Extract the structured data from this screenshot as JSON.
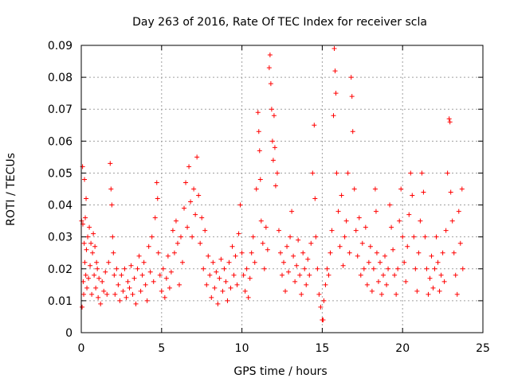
{
  "chart_data": {
    "type": "scatter",
    "title": "Day 263 of 2016, Rate Of TEC Index for receiver scla",
    "xlabel": "GPS time / hours",
    "ylabel": "ROTI / TECUs",
    "xlim": [
      0,
      25
    ],
    "ylim": [
      0,
      0.09
    ],
    "x_ticks": [
      0,
      5,
      10,
      15,
      20,
      25
    ],
    "x_tick_labels": [
      "0",
      "5",
      "10",
      "15",
      "20",
      "25"
    ],
    "y_ticks": [
      0,
      0.01,
      0.02,
      0.03,
      0.04,
      0.05,
      0.06,
      0.07,
      0.08,
      0.09
    ],
    "y_tick_labels": [
      "0",
      "0.01",
      "0.02",
      "0.03",
      "0.04",
      "0.05",
      "0.06",
      "0.07",
      "0.08",
      "0.09"
    ],
    "grid": true,
    "marker": "+",
    "color": "#ff0000",
    "series": [
      {
        "name": "ROTI",
        "points": [
          [
            0.02,
            0.035
          ],
          [
            0.05,
            0.008
          ],
          [
            0.08,
            0.052
          ],
          [
            0.1,
            0.034
          ],
          [
            0.12,
            0.016
          ],
          [
            0.15,
            0.012
          ],
          [
            0.18,
            0.028
          ],
          [
            0.2,
            0.048
          ],
          [
            0.22,
            0.022
          ],
          [
            0.25,
            0.036
          ],
          [
            0.28,
            0.018
          ],
          [
            0.3,
            0.042
          ],
          [
            0.32,
            0.026
          ],
          [
            0.35,
            0.014
          ],
          [
            0.4,
            0.03
          ],
          [
            0.45,
            0.017
          ],
          [
            0.5,
            0.033
          ],
          [
            0.55,
            0.021
          ],
          [
            0.6,
            0.028
          ],
          [
            0.65,
            0.012
          ],
          [
            0.7,
            0.025
          ],
          [
            0.75,
            0.031
          ],
          [
            0.8,
            0.018
          ],
          [
            0.85,
            0.027
          ],
          [
            0.9,
            0.014
          ],
          [
            0.95,
            0.022
          ],
          [
            1.0,
            0.02
          ],
          [
            1.05,
            0.011
          ],
          [
            1.1,
            0.017
          ],
          [
            1.2,
            0.009
          ],
          [
            1.3,
            0.016
          ],
          [
            1.4,
            0.013
          ],
          [
            1.5,
            0.019
          ],
          [
            1.6,
            0.012
          ],
          [
            1.7,
            0.022
          ],
          [
            1.8,
            0.053
          ],
          [
            1.85,
            0.045
          ],
          [
            1.9,
            0.04
          ],
          [
            1.95,
            0.03
          ],
          [
            2.0,
            0.025
          ],
          [
            2.05,
            0.018
          ],
          [
            2.1,
            0.012
          ],
          [
            2.2,
            0.02
          ],
          [
            2.3,
            0.015
          ],
          [
            2.4,
            0.01
          ],
          [
            2.5,
            0.018
          ],
          [
            2.6,
            0.013
          ],
          [
            2.7,
            0.02
          ],
          [
            2.8,
            0.011
          ],
          [
            2.9,
            0.016
          ],
          [
            3.0,
            0.014
          ],
          [
            3.1,
            0.021
          ],
          [
            3.2,
            0.012
          ],
          [
            3.3,
            0.017
          ],
          [
            3.4,
            0.009
          ],
          [
            3.5,
            0.02
          ],
          [
            3.6,
            0.024
          ],
          [
            3.7,
            0.013
          ],
          [
            3.8,
            0.018
          ],
          [
            3.9,
            0.022
          ],
          [
            4.0,
            0.015
          ],
          [
            4.1,
            0.01
          ],
          [
            4.2,
            0.027
          ],
          [
            4.3,
            0.019
          ],
          [
            4.4,
            0.03
          ],
          [
            4.5,
            0.016
          ],
          [
            4.6,
            0.036
          ],
          [
            4.7,
            0.047
          ],
          [
            4.75,
            0.042
          ],
          [
            4.8,
            0.025
          ],
          [
            4.9,
            0.018
          ],
          [
            5.0,
            0.013
          ],
          [
            5.1,
            0.02
          ],
          [
            5.2,
            0.011
          ],
          [
            5.3,
            0.017
          ],
          [
            5.4,
            0.024
          ],
          [
            5.5,
            0.014
          ],
          [
            5.6,
            0.019
          ],
          [
            5.7,
            0.032
          ],
          [
            5.8,
            0.025
          ],
          [
            5.9,
            0.035
          ],
          [
            6.0,
            0.028
          ],
          [
            6.1,
            0.015
          ],
          [
            6.2,
            0.03
          ],
          [
            6.3,
            0.022
          ],
          [
            6.4,
            0.039
          ],
          [
            6.5,
            0.047
          ],
          [
            6.6,
            0.033
          ],
          [
            6.7,
            0.052
          ],
          [
            6.8,
            0.041
          ],
          [
            6.9,
            0.03
          ],
          [
            7.0,
            0.045
          ],
          [
            7.1,
            0.037
          ],
          [
            7.2,
            0.055
          ],
          [
            7.3,
            0.043
          ],
          [
            7.4,
            0.028
          ],
          [
            7.5,
            0.036
          ],
          [
            7.6,
            0.02
          ],
          [
            7.7,
            0.032
          ],
          [
            7.8,
            0.015
          ],
          [
            7.9,
            0.024
          ],
          [
            8.0,
            0.018
          ],
          [
            8.1,
            0.011
          ],
          [
            8.2,
            0.022
          ],
          [
            8.3,
            0.014
          ],
          [
            8.4,
            0.019
          ],
          [
            8.5,
            0.009
          ],
          [
            8.6,
            0.017
          ],
          [
            8.7,
            0.023
          ],
          [
            8.8,
            0.013
          ],
          [
            8.9,
            0.02
          ],
          [
            9.0,
            0.016
          ],
          [
            9.1,
            0.01
          ],
          [
            9.2,
            0.022
          ],
          [
            9.3,
            0.014
          ],
          [
            9.4,
            0.027
          ],
          [
            9.5,
            0.018
          ],
          [
            9.6,
            0.024
          ],
          [
            9.7,
            0.015
          ],
          [
            9.8,
            0.031
          ],
          [
            9.9,
            0.04
          ],
          [
            10.0,
            0.025
          ],
          [
            10.1,
            0.018
          ],
          [
            10.2,
            0.013
          ],
          [
            10.3,
            0.02
          ],
          [
            10.4,
            0.011
          ],
          [
            10.5,
            0.017
          ],
          [
            10.6,
            0.025
          ],
          [
            10.7,
            0.03
          ],
          [
            10.8,
            0.022
          ],
          [
            10.9,
            0.045
          ],
          [
            11.0,
            0.069
          ],
          [
            11.05,
            0.063
          ],
          [
            11.1,
            0.057
          ],
          [
            11.15,
            0.048
          ],
          [
            11.2,
            0.035
          ],
          [
            11.3,
            0.028
          ],
          [
            11.4,
            0.02
          ],
          [
            11.5,
            0.033
          ],
          [
            11.6,
            0.026
          ],
          [
            11.7,
            0.083
          ],
          [
            11.75,
            0.087
          ],
          [
            11.8,
            0.078
          ],
          [
            11.85,
            0.07
          ],
          [
            11.9,
            0.06
          ],
          [
            11.95,
            0.054
          ],
          [
            12.0,
            0.068
          ],
          [
            12.05,
            0.058
          ],
          [
            12.1,
            0.046
          ],
          [
            12.2,
            0.05
          ],
          [
            12.3,
            0.032
          ],
          [
            12.4,
            0.025
          ],
          [
            12.5,
            0.018
          ],
          [
            12.6,
            0.022
          ],
          [
            12.7,
            0.013
          ],
          [
            12.8,
            0.027
          ],
          [
            12.9,
            0.019
          ],
          [
            13.0,
            0.03
          ],
          [
            13.1,
            0.038
          ],
          [
            13.2,
            0.024
          ],
          [
            13.3,
            0.016
          ],
          [
            13.4,
            0.021
          ],
          [
            13.5,
            0.029
          ],
          [
            13.6,
            0.018
          ],
          [
            13.7,
            0.012
          ],
          [
            13.8,
            0.025
          ],
          [
            13.9,
            0.02
          ],
          [
            14.0,
            0.015
          ],
          [
            14.1,
            0.023
          ],
          [
            14.2,
            0.018
          ],
          [
            14.3,
            0.028
          ],
          [
            14.4,
            0.05
          ],
          [
            14.5,
            0.065
          ],
          [
            14.55,
            0.042
          ],
          [
            14.6,
            0.03
          ],
          [
            14.7,
            0.02
          ],
          [
            14.8,
            0.012
          ],
          [
            14.9,
            0.008
          ],
          [
            15.0,
            0.004
          ],
          [
            15.05,
            0.004
          ],
          [
            15.1,
            0.01
          ],
          [
            15.2,
            0.015
          ],
          [
            15.3,
            0.02
          ],
          [
            15.4,
            0.018
          ],
          [
            15.5,
            0.025
          ],
          [
            15.6,
            0.032
          ],
          [
            15.7,
            0.068
          ],
          [
            15.75,
            0.089
          ],
          [
            15.8,
            0.082
          ],
          [
            15.85,
            0.075
          ],
          [
            15.9,
            0.05
          ],
          [
            16.0,
            0.038
          ],
          [
            16.1,
            0.027
          ],
          [
            16.2,
            0.043
          ],
          [
            16.3,
            0.021
          ],
          [
            16.4,
            0.03
          ],
          [
            16.5,
            0.035
          ],
          [
            16.6,
            0.05
          ],
          [
            16.7,
            0.025
          ],
          [
            16.8,
            0.08
          ],
          [
            16.85,
            0.074
          ],
          [
            16.9,
            0.063
          ],
          [
            17.0,
            0.045
          ],
          [
            17.1,
            0.032
          ],
          [
            17.2,
            0.024
          ],
          [
            17.3,
            0.036
          ],
          [
            17.4,
            0.018
          ],
          [
            17.5,
            0.028
          ],
          [
            17.6,
            0.02
          ],
          [
            17.7,
            0.033
          ],
          [
            17.8,
            0.015
          ],
          [
            17.9,
            0.022
          ],
          [
            18.0,
            0.027
          ],
          [
            18.1,
            0.013
          ],
          [
            18.2,
            0.02
          ],
          [
            18.3,
            0.045
          ],
          [
            18.35,
            0.038
          ],
          [
            18.4,
            0.025
          ],
          [
            18.5,
            0.016
          ],
          [
            18.6,
            0.022
          ],
          [
            18.7,
            0.012
          ],
          [
            18.8,
            0.018
          ],
          [
            18.9,
            0.024
          ],
          [
            19.0,
            0.015
          ],
          [
            19.1,
            0.02
          ],
          [
            19.2,
            0.04
          ],
          [
            19.3,
            0.033
          ],
          [
            19.4,
            0.026
          ],
          [
            19.5,
            0.018
          ],
          [
            19.6,
            0.012
          ],
          [
            19.7,
            0.02
          ],
          [
            19.8,
            0.035
          ],
          [
            19.9,
            0.045
          ],
          [
            20.0,
            0.03
          ],
          [
            20.1,
            0.022
          ],
          [
            20.2,
            0.016
          ],
          [
            20.3,
            0.027
          ],
          [
            20.4,
            0.037
          ],
          [
            20.5,
            0.05
          ],
          [
            20.6,
            0.043
          ],
          [
            20.7,
            0.03
          ],
          [
            20.8,
            0.02
          ],
          [
            20.9,
            0.013
          ],
          [
            21.0,
            0.025
          ],
          [
            21.1,
            0.035
          ],
          [
            21.2,
            0.05
          ],
          [
            21.3,
            0.044
          ],
          [
            21.4,
            0.03
          ],
          [
            21.5,
            0.02
          ],
          [
            21.6,
            0.012
          ],
          [
            21.7,
            0.017
          ],
          [
            21.8,
            0.024
          ],
          [
            21.9,
            0.014
          ],
          [
            22.0,
            0.02
          ],
          [
            22.1,
            0.03
          ],
          [
            22.2,
            0.022
          ],
          [
            22.3,
            0.013
          ],
          [
            22.4,
            0.018
          ],
          [
            22.5,
            0.025
          ],
          [
            22.6,
            0.016
          ],
          [
            22.7,
            0.032
          ],
          [
            22.8,
            0.05
          ],
          [
            22.9,
            0.067
          ],
          [
            22.95,
            0.066
          ],
          [
            23.0,
            0.044
          ],
          [
            23.1,
            0.035
          ],
          [
            23.2,
            0.025
          ],
          [
            23.3,
            0.018
          ],
          [
            23.4,
            0.012
          ],
          [
            23.5,
            0.038
          ],
          [
            23.6,
            0.028
          ],
          [
            23.7,
            0.045
          ],
          [
            23.75,
            0.02
          ]
        ]
      }
    ]
  }
}
